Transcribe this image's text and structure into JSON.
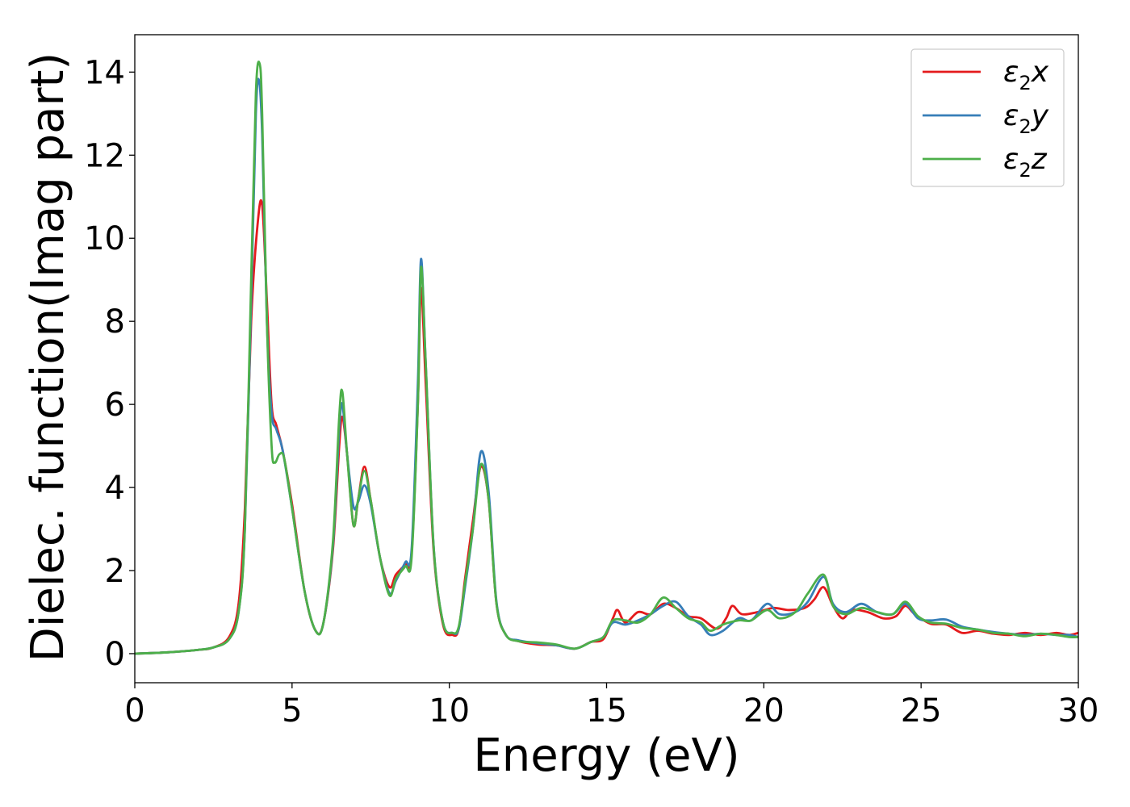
{
  "chart_data": {
    "type": "line",
    "title": "",
    "xlabel": "Energy (eV)",
    "ylabel": "Dielec. function(Imag part)",
    "xlim": [
      0,
      30
    ],
    "ylim": [
      -0.7,
      14.9
    ],
    "xticks": [
      0,
      5,
      10,
      15,
      20,
      25,
      30
    ],
    "yticks": [
      0,
      2,
      4,
      6,
      8,
      10,
      12,
      14
    ],
    "grid": false,
    "legend_position": "top-right",
    "series": [
      {
        "name": "ε2x",
        "legend_main": "ε",
        "legend_sub": "2",
        "legend_tail": "x",
        "color": "#e41a1c",
        "points": [
          [
            0,
            0.0
          ],
          [
            1,
            0.03
          ],
          [
            2,
            0.09
          ],
          [
            2.5,
            0.15
          ],
          [
            3.0,
            0.4
          ],
          [
            3.3,
            1.2
          ],
          [
            3.5,
            3.5
          ],
          [
            3.7,
            8.0
          ],
          [
            3.9,
            10.3
          ],
          [
            4.05,
            10.8
          ],
          [
            4.2,
            8.5
          ],
          [
            4.35,
            6.0
          ],
          [
            4.5,
            5.5
          ],
          [
            4.7,
            4.9
          ],
          [
            5.0,
            3.6
          ],
          [
            5.4,
            1.5
          ],
          [
            5.75,
            0.55
          ],
          [
            6.0,
            0.75
          ],
          [
            6.3,
            2.5
          ],
          [
            6.5,
            5.0
          ],
          [
            6.6,
            5.7
          ],
          [
            6.75,
            4.8
          ],
          [
            6.95,
            3.1
          ],
          [
            7.1,
            3.7
          ],
          [
            7.3,
            4.5
          ],
          [
            7.5,
            3.7
          ],
          [
            7.8,
            2.3
          ],
          [
            8.1,
            1.6
          ],
          [
            8.3,
            1.9
          ],
          [
            8.6,
            2.15
          ],
          [
            8.8,
            2.4
          ],
          [
            9.0,
            6.0
          ],
          [
            9.1,
            8.8
          ],
          [
            9.25,
            6.5
          ],
          [
            9.5,
            2.5
          ],
          [
            9.8,
            0.7
          ],
          [
            10.1,
            0.45
          ],
          [
            10.3,
            0.6
          ],
          [
            10.5,
            1.8
          ],
          [
            10.75,
            3.2
          ],
          [
            11.0,
            4.5
          ],
          [
            11.25,
            3.7
          ],
          [
            11.5,
            1.2
          ],
          [
            11.8,
            0.45
          ],
          [
            12.2,
            0.3
          ],
          [
            12.8,
            0.22
          ],
          [
            13.4,
            0.2
          ],
          [
            14.0,
            0.12
          ],
          [
            14.5,
            0.28
          ],
          [
            14.9,
            0.35
          ],
          [
            15.2,
            0.85
          ],
          [
            15.35,
            1.05
          ],
          [
            15.6,
            0.75
          ],
          [
            16.0,
            1.0
          ],
          [
            16.4,
            0.95
          ],
          [
            16.8,
            1.2
          ],
          [
            17.2,
            1.1
          ],
          [
            17.6,
            0.9
          ],
          [
            18.0,
            0.85
          ],
          [
            18.5,
            0.6
          ],
          [
            18.8,
            0.85
          ],
          [
            19.0,
            1.15
          ],
          [
            19.3,
            0.95
          ],
          [
            19.8,
            1.0
          ],
          [
            20.3,
            1.1
          ],
          [
            20.8,
            1.05
          ],
          [
            21.3,
            1.1
          ],
          [
            21.6,
            1.3
          ],
          [
            21.9,
            1.6
          ],
          [
            22.2,
            1.15
          ],
          [
            22.5,
            0.85
          ],
          [
            22.8,
            1.05
          ],
          [
            23.3,
            1.0
          ],
          [
            23.8,
            0.85
          ],
          [
            24.2,
            0.9
          ],
          [
            24.5,
            1.15
          ],
          [
            24.8,
            0.95
          ],
          [
            25.3,
            0.72
          ],
          [
            25.8,
            0.7
          ],
          [
            26.3,
            0.5
          ],
          [
            26.8,
            0.55
          ],
          [
            27.3,
            0.48
          ],
          [
            27.8,
            0.45
          ],
          [
            28.3,
            0.5
          ],
          [
            28.8,
            0.45
          ],
          [
            29.3,
            0.5
          ],
          [
            29.7,
            0.45
          ],
          [
            30.0,
            0.5
          ]
        ]
      },
      {
        "name": "ε2y",
        "legend_main": "ε",
        "legend_sub": "2",
        "legend_tail": "y",
        "color": "#377eb8",
        "points": [
          [
            0,
            0.0
          ],
          [
            1,
            0.03
          ],
          [
            2,
            0.09
          ],
          [
            2.5,
            0.15
          ],
          [
            3.0,
            0.35
          ],
          [
            3.3,
            1.0
          ],
          [
            3.5,
            3.0
          ],
          [
            3.7,
            8.5
          ],
          [
            3.85,
            13.0
          ],
          [
            3.95,
            13.8
          ],
          [
            4.05,
            12.5
          ],
          [
            4.2,
            8.0
          ],
          [
            4.35,
            5.8
          ],
          [
            4.5,
            5.4
          ],
          [
            4.7,
            4.9
          ],
          [
            5.0,
            3.5
          ],
          [
            5.4,
            1.5
          ],
          [
            5.75,
            0.55
          ],
          [
            6.0,
            0.75
          ],
          [
            6.3,
            2.6
          ],
          [
            6.5,
            5.4
          ],
          [
            6.6,
            6.0
          ],
          [
            6.75,
            4.8
          ],
          [
            6.95,
            3.55
          ],
          [
            7.1,
            3.65
          ],
          [
            7.3,
            4.05
          ],
          [
            7.5,
            3.6
          ],
          [
            7.8,
            2.3
          ],
          [
            8.1,
            1.45
          ],
          [
            8.3,
            1.75
          ],
          [
            8.6,
            2.2
          ],
          [
            8.8,
            2.5
          ],
          [
            9.0,
            6.5
          ],
          [
            9.1,
            9.5
          ],
          [
            9.25,
            7.0
          ],
          [
            9.5,
            2.6
          ],
          [
            9.8,
            0.75
          ],
          [
            10.1,
            0.5
          ],
          [
            10.3,
            0.6
          ],
          [
            10.5,
            1.6
          ],
          [
            10.75,
            3.0
          ],
          [
            11.0,
            4.85
          ],
          [
            11.25,
            3.9
          ],
          [
            11.5,
            1.25
          ],
          [
            11.8,
            0.45
          ],
          [
            12.2,
            0.32
          ],
          [
            12.8,
            0.25
          ],
          [
            13.4,
            0.2
          ],
          [
            14.0,
            0.12
          ],
          [
            14.5,
            0.28
          ],
          [
            14.9,
            0.4
          ],
          [
            15.2,
            0.75
          ],
          [
            15.6,
            0.7
          ],
          [
            16.0,
            0.8
          ],
          [
            16.4,
            0.95
          ],
          [
            16.8,
            1.15
          ],
          [
            17.2,
            1.25
          ],
          [
            17.6,
            0.9
          ],
          [
            18.0,
            0.7
          ],
          [
            18.3,
            0.45
          ],
          [
            18.7,
            0.55
          ],
          [
            19.2,
            0.85
          ],
          [
            19.6,
            0.8
          ],
          [
            20.1,
            1.2
          ],
          [
            20.5,
            0.95
          ],
          [
            21.0,
            1.0
          ],
          [
            21.4,
            1.25
          ],
          [
            21.9,
            1.85
          ],
          [
            22.2,
            1.2
          ],
          [
            22.6,
            1.0
          ],
          [
            23.1,
            1.2
          ],
          [
            23.6,
            1.0
          ],
          [
            24.1,
            0.95
          ],
          [
            24.5,
            1.2
          ],
          [
            24.9,
            0.85
          ],
          [
            25.3,
            0.8
          ],
          [
            25.8,
            0.82
          ],
          [
            26.3,
            0.65
          ],
          [
            26.8,
            0.58
          ],
          [
            27.3,
            0.52
          ],
          [
            27.8,
            0.48
          ],
          [
            28.3,
            0.45
          ],
          [
            28.8,
            0.48
          ],
          [
            29.3,
            0.45
          ],
          [
            29.7,
            0.45
          ],
          [
            30.0,
            0.4
          ]
        ]
      },
      {
        "name": "ε2z",
        "legend_main": "ε",
        "legend_sub": "2",
        "legend_tail": "z",
        "color": "#4daf4a",
        "points": [
          [
            0,
            0.0
          ],
          [
            1,
            0.03
          ],
          [
            2,
            0.09
          ],
          [
            2.5,
            0.15
          ],
          [
            3.0,
            0.35
          ],
          [
            3.3,
            1.0
          ],
          [
            3.5,
            3.0
          ],
          [
            3.7,
            9.0
          ],
          [
            3.85,
            13.5
          ],
          [
            3.97,
            14.2
          ],
          [
            4.05,
            13.0
          ],
          [
            4.2,
            8.0
          ],
          [
            4.35,
            5.0
          ],
          [
            4.45,
            4.6
          ],
          [
            4.6,
            4.8
          ],
          [
            4.75,
            4.7
          ],
          [
            5.0,
            3.5
          ],
          [
            5.4,
            1.5
          ],
          [
            5.75,
            0.55
          ],
          [
            6.0,
            0.75
          ],
          [
            6.3,
            2.7
          ],
          [
            6.5,
            5.7
          ],
          [
            6.6,
            6.3
          ],
          [
            6.75,
            4.8
          ],
          [
            6.95,
            3.1
          ],
          [
            7.1,
            3.7
          ],
          [
            7.3,
            4.4
          ],
          [
            7.5,
            3.7
          ],
          [
            7.8,
            2.3
          ],
          [
            8.1,
            1.4
          ],
          [
            8.3,
            1.8
          ],
          [
            8.6,
            2.1
          ],
          [
            8.8,
            2.3
          ],
          [
            9.0,
            6.0
          ],
          [
            9.1,
            9.3
          ],
          [
            9.25,
            7.0
          ],
          [
            9.5,
            2.6
          ],
          [
            9.8,
            0.75
          ],
          [
            10.1,
            0.5
          ],
          [
            10.3,
            0.65
          ],
          [
            10.5,
            1.7
          ],
          [
            10.75,
            3.0
          ],
          [
            11.0,
            4.55
          ],
          [
            11.25,
            3.7
          ],
          [
            11.5,
            1.2
          ],
          [
            11.8,
            0.45
          ],
          [
            12.2,
            0.3
          ],
          [
            12.8,
            0.27
          ],
          [
            13.4,
            0.22
          ],
          [
            14.0,
            0.12
          ],
          [
            14.5,
            0.28
          ],
          [
            14.9,
            0.4
          ],
          [
            15.2,
            0.8
          ],
          [
            15.6,
            0.8
          ],
          [
            16.0,
            0.75
          ],
          [
            16.4,
            0.95
          ],
          [
            16.8,
            1.35
          ],
          [
            17.2,
            1.1
          ],
          [
            17.6,
            0.85
          ],
          [
            18.0,
            0.75
          ],
          [
            18.3,
            0.55
          ],
          [
            18.7,
            0.7
          ],
          [
            19.2,
            0.8
          ],
          [
            19.6,
            0.8
          ],
          [
            20.1,
            1.05
          ],
          [
            20.5,
            0.85
          ],
          [
            21.0,
            1.0
          ],
          [
            21.4,
            1.45
          ],
          [
            21.9,
            1.9
          ],
          [
            22.2,
            1.15
          ],
          [
            22.6,
            0.95
          ],
          [
            23.1,
            1.1
          ],
          [
            23.6,
            1.0
          ],
          [
            24.1,
            0.95
          ],
          [
            24.5,
            1.25
          ],
          [
            24.9,
            0.9
          ],
          [
            25.3,
            0.75
          ],
          [
            25.8,
            0.72
          ],
          [
            26.3,
            0.62
          ],
          [
            26.8,
            0.58
          ],
          [
            27.3,
            0.5
          ],
          [
            27.8,
            0.48
          ],
          [
            28.3,
            0.42
          ],
          [
            28.8,
            0.48
          ],
          [
            29.3,
            0.45
          ],
          [
            29.7,
            0.4
          ],
          [
            30.0,
            0.4
          ]
        ]
      }
    ]
  }
}
